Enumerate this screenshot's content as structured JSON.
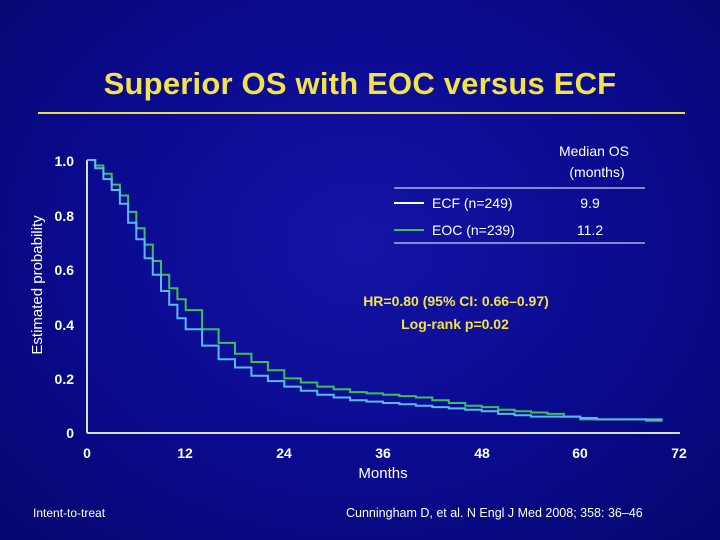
{
  "slide": {
    "title": "Superior OS with EOC versus ECF",
    "footer_left": "Intent-to-treat",
    "footer_right": "Cunningham D, et al. N Engl J Med 2008; 358: 36–46"
  },
  "chart_data": {
    "type": "line",
    "title": "Superior OS with EOC versus ECF",
    "xlabel": "Months",
    "ylabel": "Estimated probability",
    "xlim": [
      0,
      72
    ],
    "ylim": [
      0,
      1.0
    ],
    "x_ticks": [
      "0",
      "12",
      "24",
      "36",
      "48",
      "60",
      "72"
    ],
    "y_ticks": [
      "1.0",
      "0.8",
      "0.6",
      "0.4",
      "0.2",
      "0"
    ],
    "grid": false,
    "step": true,
    "legend": {
      "placement": "top-right",
      "header_line1": "Median OS",
      "header_line2": "(months)"
    },
    "annotation_line1": "HR=0.80 (95% CI: 0.66–0.97)",
    "annotation_line2": "Log-rank p=0.02",
    "series": [
      {
        "name": "ECF (n=249)",
        "median": "9.9",
        "color": "#5ab8f0",
        "x": [
          0,
          1,
          2,
          3,
          4,
          5,
          6,
          7,
          8,
          9,
          10,
          11,
          12,
          14,
          16,
          18,
          20,
          22,
          24,
          26,
          28,
          30,
          32,
          34,
          36,
          38,
          40,
          42,
          44,
          46,
          48,
          50,
          52,
          54,
          56,
          58,
          60,
          62,
          64,
          66,
          68,
          70
        ],
        "y": [
          1.0,
          0.97,
          0.93,
          0.89,
          0.84,
          0.77,
          0.71,
          0.64,
          0.58,
          0.52,
          0.47,
          0.42,
          0.38,
          0.32,
          0.27,
          0.24,
          0.21,
          0.19,
          0.17,
          0.155,
          0.14,
          0.13,
          0.12,
          0.115,
          0.11,
          0.105,
          0.1,
          0.095,
          0.09,
          0.085,
          0.08,
          0.07,
          0.065,
          0.06,
          0.06,
          0.06,
          0.055,
          0.05,
          0.05,
          0.05,
          0.05,
          0.05
        ]
      },
      {
        "name": "EOC (n=239)",
        "median": "11.2",
        "color": "#3dc05a",
        "x": [
          0,
          1,
          2,
          3,
          4,
          5,
          6,
          7,
          8,
          9,
          10,
          11,
          12,
          14,
          16,
          18,
          20,
          22,
          24,
          26,
          28,
          30,
          32,
          34,
          36,
          38,
          40,
          42,
          44,
          46,
          48,
          50,
          52,
          54,
          56,
          58,
          60,
          62,
          64,
          66,
          68,
          70
        ],
        "y": [
          1.0,
          0.98,
          0.95,
          0.91,
          0.87,
          0.81,
          0.75,
          0.69,
          0.63,
          0.58,
          0.53,
          0.49,
          0.45,
          0.38,
          0.33,
          0.29,
          0.26,
          0.23,
          0.2,
          0.185,
          0.17,
          0.16,
          0.15,
          0.145,
          0.14,
          0.135,
          0.13,
          0.12,
          0.11,
          0.1,
          0.095,
          0.085,
          0.08,
          0.075,
          0.07,
          0.06,
          0.05,
          0.05,
          0.05,
          0.05,
          0.045,
          0.045
        ]
      }
    ]
  }
}
